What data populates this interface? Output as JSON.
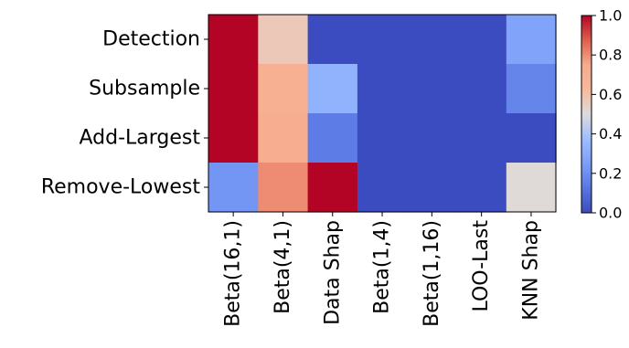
{
  "chart_data": {
    "type": "heatmap",
    "rows": [
      "Detection",
      "Subsample",
      "Add-Largest",
      "Remove-Lowest"
    ],
    "columns": [
      "Beta(16,1)",
      "Beta(4,1)",
      "Data Shap",
      "Beta(1,4)",
      "Beta(1,16)",
      "LOO-Last",
      "KNN Shap"
    ],
    "values": [
      [
        1.0,
        0.57,
        0.0,
        0.0,
        0.0,
        0.0,
        0.27
      ],
      [
        1.0,
        0.7,
        0.33,
        0.0,
        0.0,
        0.0,
        0.17
      ],
      [
        1.0,
        0.72,
        0.14,
        0.0,
        0.0,
        0.0,
        0.0
      ],
      [
        0.22,
        0.8,
        1.0,
        0.0,
        0.0,
        0.0,
        0.51
      ]
    ],
    "colormap": "coolwarm",
    "vmin": 0.0,
    "vmax": 1.0,
    "colorbar_ticks": [
      "0.0",
      "0.2",
      "0.4",
      "0.6",
      "0.8",
      "1.0"
    ]
  }
}
